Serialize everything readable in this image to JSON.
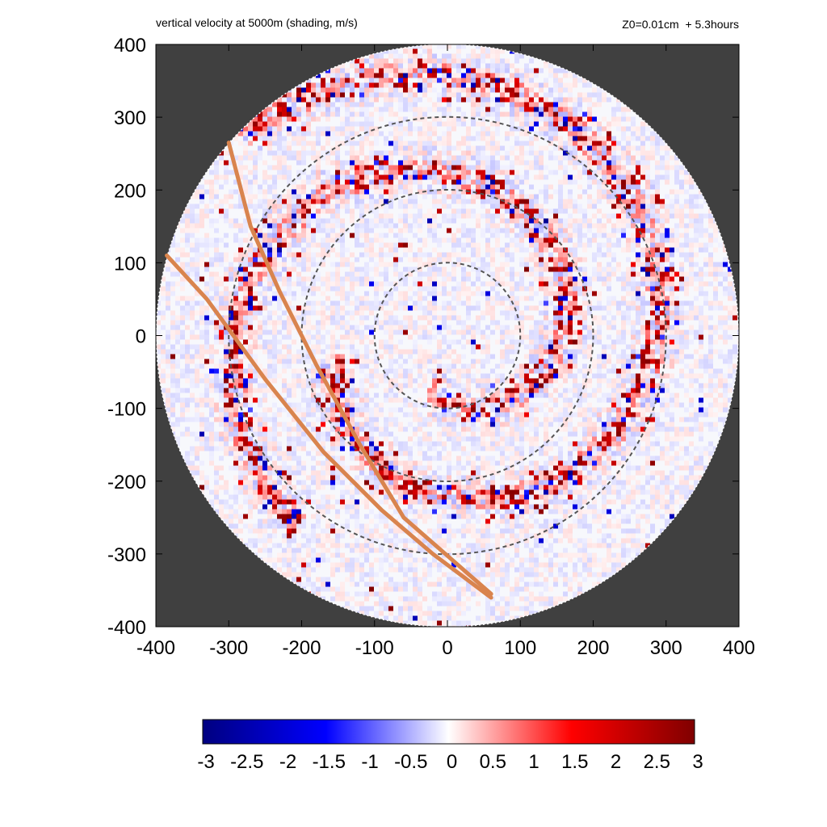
{
  "chart_data": {
    "type": "heatmap",
    "title": "vertical velocity at 5000m (shading, m/s)",
    "subtitle": "Z0=0.01cm  + 5.3hours",
    "xlabel": "",
    "ylabel": "",
    "xlim": [
      -400,
      400
    ],
    "ylim": [
      -400,
      400
    ],
    "x_ticks": [
      "-400",
      "-300",
      "-200",
      "-100",
      "0",
      "100",
      "200",
      "300",
      "400"
    ],
    "y_ticks": [
      "400",
      "300",
      "200",
      "100",
      "0",
      "-100",
      "-200",
      "-300",
      "-400"
    ],
    "domain_radius": 400,
    "outside_domain_color": "#404040",
    "range_rings_radius": [
      100,
      200,
      300
    ],
    "ring_color": "#555555",
    "track_color": "#d9844e",
    "tracks": [
      {
        "points": [
          [
            -300,
            265
          ],
          [
            -270,
            150
          ],
          [
            -230,
            60
          ],
          [
            -180,
            -40
          ],
          [
            -120,
            -150
          ],
          [
            -60,
            -250
          ],
          [
            20,
            -320
          ],
          [
            60,
            -355
          ]
        ]
      },
      {
        "points": [
          [
            -385,
            110
          ],
          [
            -330,
            50
          ],
          [
            -250,
            -60
          ],
          [
            -170,
            -160
          ],
          [
            -90,
            -240
          ],
          [
            -20,
            -300
          ],
          [
            60,
            -360
          ]
        ]
      }
    ],
    "rainbands": [
      {
        "r0": 75,
        "r1": 330,
        "theta0_deg": 250,
        "turns": 0.95
      },
      {
        "r0": 160,
        "r1": 390,
        "theta0_deg": 190,
        "turns": 0.85
      }
    ],
    "colorbar": {
      "min": -3,
      "max": 3,
      "ticks": [
        "-3",
        "-2.5",
        "-2",
        "-1.5",
        "-1",
        "-0.5",
        "0",
        "0.5",
        "1",
        "1.5",
        "2",
        "2.5",
        "3"
      ],
      "colors": [
        "#000080",
        "#0000ff",
        "#ffffff",
        "#ff0000",
        "#800000"
      ]
    }
  }
}
